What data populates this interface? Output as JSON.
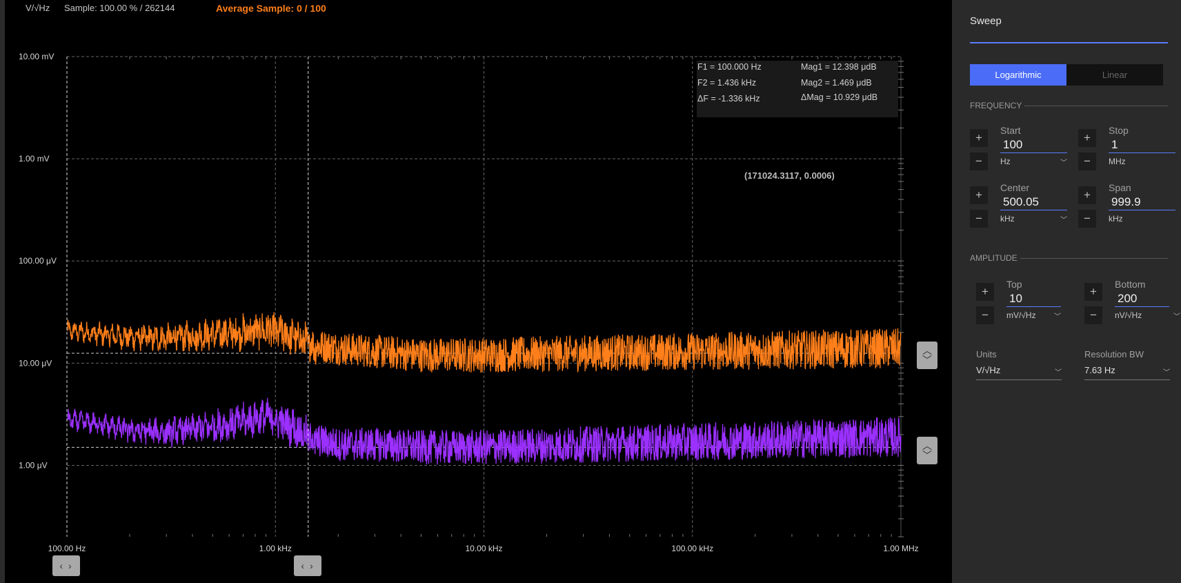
{
  "topbar": {
    "unit": "V/√Hz",
    "sample": "Sample: 100.00 % / 262144",
    "average": "Average Sample: 0 / 100"
  },
  "markers": {
    "f1": "F1 =  100.000 Hz",
    "f2": "F2 =  1.436 kHz",
    "df": "ΔF =  -1.336 kHz",
    "mag1": "Mag1 =  12.398 μdB",
    "mag2": "Mag2 =  1.469 μdB",
    "dmag": "ΔMag =  10.929 μdB"
  },
  "cursor_readout": "(171024.3117, 0.0006)",
  "chart_data": {
    "type": "line",
    "x_scale": "log",
    "y_scale": "log",
    "xlim": [
      100,
      1000000
    ],
    "ylim": [
      2e-07,
      0.01
    ],
    "x_ticks": [
      {
        "value": 100,
        "label": "100.00 Hz"
      },
      {
        "value": 1000,
        "label": "1.00 kHz"
      },
      {
        "value": 10000,
        "label": "10.00 kHz"
      },
      {
        "value": 100000,
        "label": "100.00 kHz"
      },
      {
        "value": 1000000,
        "label": "1.00 MHz"
      }
    ],
    "y_ticks": [
      {
        "value": 0.01,
        "label": "10.00 mV"
      },
      {
        "value": 0.001,
        "label": "1.00 mV"
      },
      {
        "value": 0.0001,
        "label": "100.00 μV"
      },
      {
        "value": 1e-05,
        "label": "10.00 μV"
      },
      {
        "value": 1e-06,
        "label": "1.00 μV"
      }
    ],
    "grid": true,
    "cursors": {
      "x": [
        100,
        1436
      ]
    },
    "series": [
      {
        "color": "#ff7f1a",
        "reference_level": 1.25e-05,
        "x": [
          100,
          150,
          200,
          300,
          500,
          700,
          900,
          1200,
          1500,
          2000,
          3000,
          5000,
          10000,
          30000,
          100000,
          300000,
          1000000
        ],
        "y": [
          2.1e-05,
          1.9e-05,
          1.8e-05,
          1.75e-05,
          1.9e-05,
          2e-05,
          2.1e-05,
          1.85e-05,
          1.5e-05,
          1.4e-05,
          1.3e-05,
          1.2e-05,
          1.2e-05,
          1.25e-05,
          1.3e-05,
          1.35e-05,
          1.4e-05
        ]
      },
      {
        "color": "#9b30ff",
        "reference_level": 1.5e-06,
        "x": [
          100,
          150,
          200,
          300,
          500,
          700,
          900,
          1200,
          1500,
          2000,
          3000,
          5000,
          10000,
          30000,
          100000,
          300000,
          1000000
        ],
        "y": [
          2.8e-06,
          2.5e-06,
          2.2e-06,
          2.1e-06,
          2.4e-06,
          2.7e-06,
          3e-06,
          2.4e-06,
          1.8e-06,
          1.6e-06,
          1.6e-06,
          1.5e-06,
          1.5e-06,
          1.6e-06,
          1.7e-06,
          1.8e-06,
          1.9e-06
        ]
      }
    ]
  },
  "panel": {
    "tab": "Sweep",
    "mode_log": "Logarithmic",
    "mode_lin": "Linear",
    "freq_section": "FREQUENCY",
    "amp_section": "AMPLITUDE",
    "start": {
      "label": "Start",
      "value": "100",
      "unit": "Hz"
    },
    "stop": {
      "label": "Stop",
      "value": "1",
      "unit": "MHz"
    },
    "center": {
      "label": "Center",
      "value": "500.05",
      "unit": "kHz"
    },
    "span": {
      "label": "Span",
      "value": "999.9",
      "unit": "kHz"
    },
    "top": {
      "label": "Top",
      "value": "10",
      "unit": "mV/√Hz"
    },
    "bottom": {
      "label": "Bottom",
      "value": "200",
      "unit": "nV/√Hz"
    },
    "units": {
      "label": "Units",
      "value": "V/√Hz"
    },
    "rbw": {
      "label": "Resolution BW",
      "value": "7.63 Hz"
    },
    "plus": "+",
    "minus": "−"
  }
}
